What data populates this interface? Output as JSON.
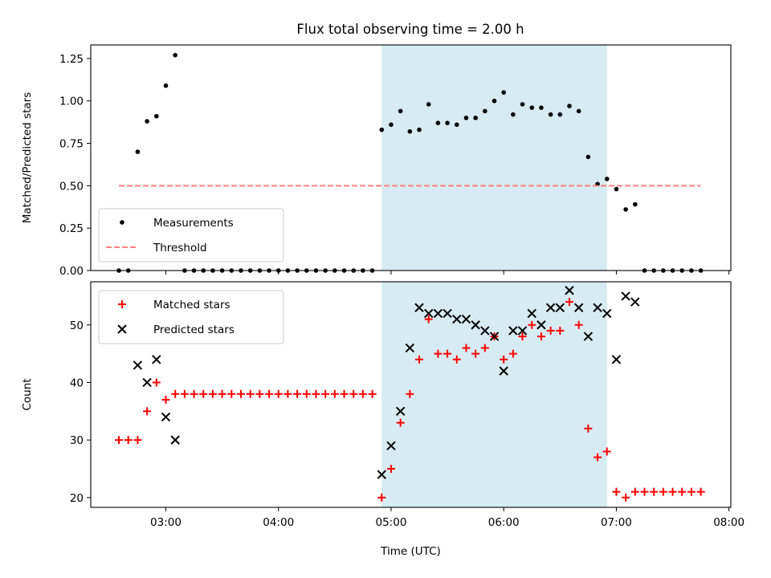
{
  "title": "Flux total observing time = 2.00 h",
  "chart_data": [
    {
      "type": "scatter",
      "ylabel": "Matched/Predicted stars",
      "ylim": [
        0,
        1.33
      ],
      "yticks": [
        0,
        0.25,
        0.5,
        0.75,
        1.0,
        1.25
      ],
      "ytick_labels": [
        "0.00",
        "0.25",
        "0.50",
        "0.75",
        "1.00",
        "1.25"
      ],
      "xlim": [
        "02:20",
        "08:01"
      ],
      "legend_position": "lower-left",
      "highlight_span": [
        "04:55",
        "06:55"
      ],
      "series": [
        {
          "name": "Measurements",
          "marker": "dot",
          "color": "#000000",
          "x": [
            "02:35",
            "02:40",
            "02:45",
            "02:50",
            "02:55",
            "03:00",
            "03:05",
            "03:10",
            "03:15",
            "03:20",
            "03:25",
            "03:30",
            "03:35",
            "03:40",
            "03:45",
            "03:50",
            "03:55",
            "04:00",
            "04:05",
            "04:10",
            "04:15",
            "04:20",
            "04:25",
            "04:30",
            "04:35",
            "04:40",
            "04:45",
            "04:50",
            "04:55",
            "05:00",
            "05:05",
            "05:10",
            "05:15",
            "05:20",
            "05:25",
            "05:30",
            "05:35",
            "05:40",
            "05:45",
            "05:50",
            "05:55",
            "06:00",
            "06:05",
            "06:10",
            "06:15",
            "06:20",
            "06:25",
            "06:30",
            "06:35",
            "06:40",
            "06:45",
            "06:50",
            "06:55",
            "07:00",
            "07:05",
            "07:10",
            "07:15",
            "07:20",
            "07:25",
            "07:30",
            "07:35",
            "07:40",
            "07:45"
          ],
          "y": [
            0,
            0,
            0.7,
            0.88,
            0.91,
            1.09,
            1.27,
            0,
            0,
            0,
            0,
            0,
            0,
            0,
            0,
            0,
            0,
            0,
            0,
            0,
            0,
            0,
            0,
            0,
            0,
            0,
            0,
            0,
            0.83,
            0.86,
            0.94,
            0.82,
            0.83,
            0.98,
            0.87,
            0.87,
            0.86,
            0.9,
            0.9,
            0.94,
            1.0,
            1.05,
            0.92,
            0.98,
            0.96,
            0.96,
            0.92,
            0.92,
            0.97,
            0.94,
            0.67,
            0.51,
            0.54,
            0.48,
            0.36,
            0.39,
            0,
            0,
            0,
            0,
            0,
            0,
            0
          ]
        },
        {
          "name": "Threshold",
          "marker": "dashed-line",
          "color": "#ff8080",
          "x": [
            "02:35",
            "07:45"
          ],
          "y": [
            0.5,
            0.5
          ]
        }
      ]
    },
    {
      "type": "scatter",
      "ylabel": "Count",
      "xlabel": "Time (UTC)",
      "ylim": [
        18.3,
        57.5
      ],
      "yticks": [
        20,
        30,
        40,
        50
      ],
      "ytick_labels": [
        "20",
        "30",
        "40",
        "50"
      ],
      "xlim": [
        "02:20",
        "08:01"
      ],
      "xticks": [
        "03:00",
        "04:00",
        "05:00",
        "06:00",
        "07:00",
        "08:00"
      ],
      "legend_position": "top-left",
      "highlight_span": [
        "04:55",
        "06:55"
      ],
      "series": [
        {
          "name": "Matched stars",
          "marker": "plus",
          "color": "#ff0000",
          "x": [
            "02:35",
            "02:40",
            "02:45",
            "02:50",
            "02:55",
            "03:00",
            "03:05",
            "03:10",
            "03:15",
            "03:20",
            "03:25",
            "03:30",
            "03:35",
            "03:40",
            "03:45",
            "03:50",
            "03:55",
            "04:00",
            "04:05",
            "04:10",
            "04:15",
            "04:20",
            "04:25",
            "04:30",
            "04:35",
            "04:40",
            "04:45",
            "04:50",
            "04:55",
            "05:00",
            "05:05",
            "05:10",
            "05:15",
            "05:20",
            "05:25",
            "05:30",
            "05:35",
            "05:40",
            "05:45",
            "05:50",
            "05:55",
            "06:00",
            "06:05",
            "06:10",
            "06:15",
            "06:20",
            "06:25",
            "06:30",
            "06:35",
            "06:40",
            "06:45",
            "06:50",
            "06:55",
            "07:00",
            "07:05",
            "07:10",
            "07:15",
            "07:20",
            "07:25",
            "07:30",
            "07:35",
            "07:40",
            "07:45"
          ],
          "y": [
            30,
            30,
            30,
            35,
            40,
            37,
            38,
            38,
            38,
            38,
            38,
            38,
            38,
            38,
            38,
            38,
            38,
            38,
            38,
            38,
            38,
            38,
            38,
            38,
            38,
            38,
            38,
            38,
            20,
            25,
            33,
            38,
            44,
            51,
            45,
            45,
            44,
            46,
            45,
            46,
            48,
            44,
            45,
            48,
            50,
            48,
            49,
            49,
            54,
            50,
            32,
            27,
            28,
            21,
            20,
            21,
            21,
            21,
            21,
            21,
            21,
            21,
            21
          ]
        },
        {
          "name": "Predicted stars",
          "marker": "x",
          "color": "#000000",
          "x": [
            "02:45",
            "02:50",
            "02:55",
            "03:00",
            "03:05",
            "04:55",
            "05:00",
            "05:05",
            "05:10",
            "05:15",
            "05:20",
            "05:25",
            "05:30",
            "05:35",
            "05:40",
            "05:45",
            "05:50",
            "05:55",
            "06:00",
            "06:05",
            "06:10",
            "06:15",
            "06:20",
            "06:25",
            "06:30",
            "06:35",
            "06:40",
            "06:45",
            "06:50",
            "06:55",
            "07:00",
            "07:05",
            "07:10"
          ],
          "y": [
            43,
            40,
            44,
            34,
            30,
            24,
            29,
            35,
            46,
            53,
            52,
            52,
            52,
            51,
            51,
            50,
            49,
            48,
            42,
            49,
            49,
            52,
            50,
            53,
            53,
            56,
            53,
            48,
            53,
            52,
            44,
            55,
            54
          ]
        }
      ]
    }
  ]
}
